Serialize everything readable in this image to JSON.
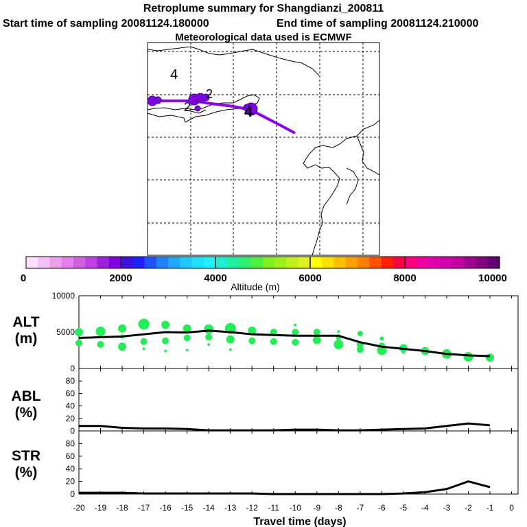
{
  "header": {
    "title": "Retroplume summary for Shangdianzi_200811",
    "start_time": "Start time of sampling 20081124.180000",
    "end_time": "End time of sampling 20081124.210000",
    "met_data": "Meteorological data used is ECMWF"
  },
  "map": {
    "labels": [
      {
        "text": "4"
      },
      {
        "text": "2"
      },
      {
        "text": "2"
      },
      {
        "text": "4"
      }
    ]
  },
  "colorbar": {
    "ticks": [
      "0",
      "2000",
      "4000",
      "6000",
      "8000",
      "10000"
    ],
    "label": "Altitude (m)",
    "colors": [
      "#ffe0ff",
      "#f5c0f5",
      "#eaa0ea",
      "#e080e8",
      "#d060e0",
      "#c040e0",
      "#a020e0",
      "#8000e0",
      "#4010e0",
      "#2020ff",
      "#2050ff",
      "#2080ff",
      "#20a8ff",
      "#20c8ff",
      "#20e0ff",
      "#20f0ff",
      "#20f0d0",
      "#20f0a0",
      "#30f070",
      "#50f040",
      "#80f020",
      "#a0f020",
      "#c0f020",
      "#e0f020",
      "#ffff00",
      "#ffe000",
      "#ffc000",
      "#ffa000",
      "#ff8000",
      "#ff5000",
      "#ff2000",
      "#ff0040",
      "#ff0080",
      "#f000a0",
      "#e000b0",
      "#d000b0",
      "#c000a0",
      "#a00090",
      "#800080",
      "#600070"
    ]
  },
  "chart_data": [
    {
      "type": "scatter",
      "name": "ALT",
      "ylabel": "ALT",
      "yunit": "(m)",
      "ylim": [
        0,
        10000
      ],
      "yticks": [
        "10000",
        "5000",
        "0"
      ],
      "ytick_values": [
        10000,
        5000,
        0
      ],
      "x": [
        -20,
        -19,
        -18,
        -17,
        -16,
        -15,
        -14,
        -13,
        -12,
        -11,
        -10,
        -9,
        -8,
        -7,
        -6,
        -5,
        -4,
        -3,
        -2,
        -1
      ],
      "line_values": [
        4200,
        4300,
        4400,
        4700,
        5000,
        4950,
        5200,
        5000,
        4700,
        4600,
        4500,
        4500,
        4500,
        3600,
        3000,
        2700,
        2400,
        2000,
        1800,
        1700
      ],
      "points": [
        {
          "x": -20,
          "y": 5000,
          "r": 6
        },
        {
          "x": -20,
          "y": 3500,
          "r": 5
        },
        {
          "x": -19,
          "y": 5100,
          "r": 7
        },
        {
          "x": -19,
          "y": 3300,
          "r": 5
        },
        {
          "x": -18,
          "y": 5500,
          "r": 6
        },
        {
          "x": -18,
          "y": 3000,
          "r": 6
        },
        {
          "x": -18,
          "y": 4400,
          "r": 3
        },
        {
          "x": -17,
          "y": 6100,
          "r": 8
        },
        {
          "x": -17,
          "y": 3700,
          "r": 5
        },
        {
          "x": -17,
          "y": 2700,
          "r": 2
        },
        {
          "x": -16,
          "y": 6000,
          "r": 6
        },
        {
          "x": -16,
          "y": 3800,
          "r": 5
        },
        {
          "x": -16,
          "y": 2400,
          "r": 2
        },
        {
          "x": -15,
          "y": 5500,
          "r": 6
        },
        {
          "x": -15,
          "y": 4200,
          "r": 5
        },
        {
          "x": -15,
          "y": 2500,
          "r": 2
        },
        {
          "x": -14,
          "y": 5400,
          "r": 7
        },
        {
          "x": -14,
          "y": 4300,
          "r": 5
        },
        {
          "x": -14,
          "y": 3300,
          "r": 2
        },
        {
          "x": -13,
          "y": 5500,
          "r": 8
        },
        {
          "x": -13,
          "y": 4000,
          "r": 6
        },
        {
          "x": -13,
          "y": 2600,
          "r": 2
        },
        {
          "x": -12,
          "y": 5200,
          "r": 6
        },
        {
          "x": -12,
          "y": 3800,
          "r": 5
        },
        {
          "x": -11,
          "y": 5000,
          "r": 5
        },
        {
          "x": -11,
          "y": 3700,
          "r": 5
        },
        {
          "x": -10,
          "y": 5000,
          "r": 5
        },
        {
          "x": -10,
          "y": 3600,
          "r": 5
        },
        {
          "x": -10,
          "y": 6000,
          "r": 2
        },
        {
          "x": -9,
          "y": 5000,
          "r": 5
        },
        {
          "x": -9,
          "y": 3900,
          "r": 6
        },
        {
          "x": -8,
          "y": 5100,
          "r": 2
        },
        {
          "x": -8,
          "y": 4300,
          "r": 4
        },
        {
          "x": -8,
          "y": 3300,
          "r": 7
        },
        {
          "x": -7,
          "y": 4800,
          "r": 4
        },
        {
          "x": -7,
          "y": 3300,
          "r": 5
        },
        {
          "x": -7,
          "y": 2600,
          "r": 5
        },
        {
          "x": -6,
          "y": 4100,
          "r": 3
        },
        {
          "x": -6,
          "y": 3100,
          "r": 5
        },
        {
          "x": -6,
          "y": 2500,
          "r": 7
        },
        {
          "x": -5,
          "y": 2800,
          "r": 6
        },
        {
          "x": -5,
          "y": 2200,
          "r": 2
        },
        {
          "x": -4,
          "y": 2400,
          "r": 6
        },
        {
          "x": -3,
          "y": 2000,
          "r": 7
        },
        {
          "x": -2,
          "y": 1600,
          "r": 7
        },
        {
          "x": -1,
          "y": 1500,
          "r": 6
        }
      ]
    },
    {
      "type": "line",
      "name": "ABL",
      "ylabel": "ABL",
      "yunit": "(%)",
      "ylim": [
        0,
        100
      ],
      "yticks": [
        "80",
        "60",
        "40",
        "20",
        "0"
      ],
      "ytick_values": [
        80,
        60,
        40,
        20,
        0
      ],
      "x": [
        -20,
        -19,
        -18,
        -17,
        -16,
        -15,
        -14,
        -13,
        -12,
        -11,
        -10,
        -9,
        -8,
        -7,
        -6,
        -5,
        -4,
        -3,
        -2,
        -1
      ],
      "values": [
        8,
        8,
        5,
        4,
        4,
        3,
        1,
        1,
        1,
        1,
        2,
        2,
        1,
        1,
        2,
        3,
        4,
        8,
        12,
        9
      ]
    },
    {
      "type": "line",
      "name": "STR",
      "ylabel": "STR",
      "yunit": "(%)",
      "ylim": [
        0,
        100
      ],
      "yticks": [
        "80",
        "60",
        "40",
        "20",
        "0"
      ],
      "ytick_values": [
        80,
        60,
        40,
        20,
        0
      ],
      "x": [
        -20,
        -19,
        -18,
        -17,
        -16,
        -15,
        -14,
        -13,
        -12,
        -11,
        -10,
        -9,
        -8,
        -7,
        -6,
        -5,
        -4,
        -3,
        -2,
        -1
      ],
      "values": [
        2,
        2,
        2,
        1,
        1,
        1,
        1,
        1,
        1,
        0,
        0,
        0,
        0,
        0,
        0,
        1,
        3,
        8,
        20,
        11
      ],
      "xlabel": "Travel time (days)",
      "xticks": [
        "-20",
        "-19",
        "-18",
        "-17",
        "-16",
        "-15",
        "-14",
        "-13",
        "-12",
        "-11",
        "-10",
        "-9",
        "-8",
        "-7",
        "-6",
        "-5",
        "-4",
        "-3",
        "-2",
        "-1",
        "0"
      ]
    }
  ]
}
